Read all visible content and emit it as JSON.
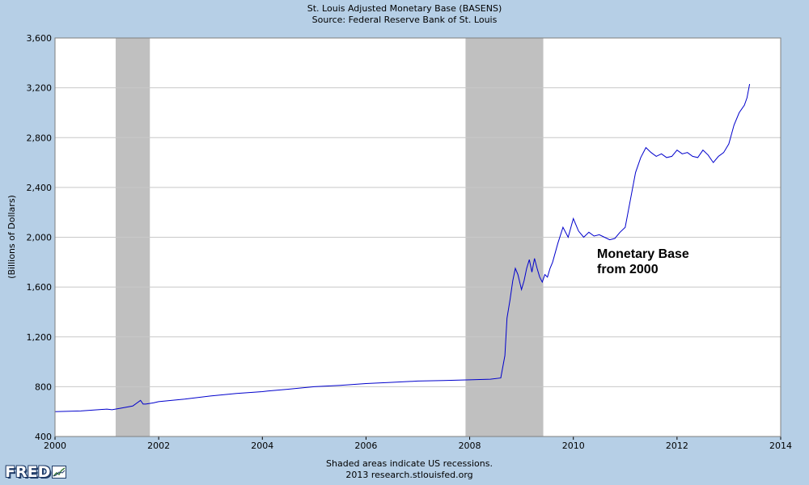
{
  "header": {
    "title": "St. Louis Adjusted Monetary Base (BASENS)",
    "subtitle": "Source: Federal Reserve Bank of St. Louis"
  },
  "footer": {
    "note": "Shaded areas indicate US recessions.",
    "credit": "2013 research.stlouisfed.org"
  },
  "logo": {
    "text": "FRED",
    "icon": "chart-line-icon"
  },
  "colors": {
    "background": "#b6cfe6",
    "plot": "#ffffff",
    "line": "#0000cc",
    "recession": "#c0c0c0",
    "grid": "#c8c8c8"
  },
  "chart_data": {
    "type": "line",
    "title": "St. Louis Adjusted Monetary Base (BASENS)",
    "subtitle": "Source: Federal Reserve Bank of St. Louis",
    "xlabel": "",
    "ylabel": "(Billions of Dollars)",
    "xlim": [
      2000,
      2014
    ],
    "ylim": [
      400,
      3600
    ],
    "x_ticks": [
      2000,
      2002,
      2004,
      2006,
      2008,
      2010,
      2012,
      2014
    ],
    "x_tick_labels": [
      "2000",
      "2002",
      "2004",
      "2006",
      "2008",
      "2010",
      "2012",
      "2014"
    ],
    "y_ticks": [
      400,
      800,
      1200,
      1600,
      2000,
      2400,
      2800,
      3200,
      3600
    ],
    "y_tick_labels": [
      "400",
      "800",
      "1,200",
      "1,600",
      "2,000",
      "2,400",
      "2,800",
      "3,200",
      "3,600"
    ],
    "grid": "horizontal",
    "recessions": [
      [
        2001.17,
        2001.83
      ],
      [
        2007.92,
        2009.42
      ]
    ],
    "annotation": {
      "text": [
        "Monetary Base",
        "from 2000"
      ],
      "x": 2010.45,
      "y": 1700
    },
    "series": [
      {
        "name": "",
        "x": [
          2000.0,
          2000.5,
          2001.0,
          2001.1,
          2001.3,
          2001.5,
          2001.65,
          2001.7,
          2001.75,
          2001.9,
          2002.0,
          2002.5,
          2003.0,
          2003.5,
          2004.0,
          2004.1,
          2004.5,
          2005.0,
          2005.5,
          2006.0,
          2006.5,
          2007.0,
          2007.5,
          2008.0,
          2008.4,
          2008.6,
          2008.68,
          2008.72,
          2008.78,
          2008.83,
          2008.88,
          2008.93,
          2009.0,
          2009.05,
          2009.1,
          2009.15,
          2009.2,
          2009.25,
          2009.3,
          2009.35,
          2009.4,
          2009.45,
          2009.5,
          2009.55,
          2009.6,
          2009.7,
          2009.8,
          2009.9,
          2010.0,
          2010.1,
          2010.2,
          2010.3,
          2010.4,
          2010.5,
          2010.6,
          2010.7,
          2010.8,
          2010.9,
          2011.0,
          2011.1,
          2011.2,
          2011.3,
          2011.4,
          2011.5,
          2011.6,
          2011.7,
          2011.8,
          2011.9,
          2012.0,
          2012.1,
          2012.2,
          2012.3,
          2012.4,
          2012.5,
          2012.6,
          2012.7,
          2012.8,
          2012.9,
          2013.0,
          2013.1,
          2013.2,
          2013.3,
          2013.35,
          2013.4
        ],
        "y": [
          600,
          605,
          620,
          615,
          630,
          645,
          690,
          660,
          660,
          670,
          680,
          700,
          725,
          745,
          760,
          765,
          780,
          800,
          810,
          825,
          835,
          845,
          850,
          855,
          860,
          870,
          1050,
          1350,
          1500,
          1650,
          1750,
          1700,
          1580,
          1650,
          1750,
          1820,
          1720,
          1830,
          1750,
          1680,
          1640,
          1700,
          1680,
          1750,
          1800,
          1950,
          2080,
          2000,
          2150,
          2050,
          2000,
          2040,
          2010,
          2020,
          2000,
          1980,
          1990,
          2040,
          2080,
          2300,
          2520,
          2640,
          2720,
          2680,
          2650,
          2670,
          2640,
          2650,
          2700,
          2670,
          2680,
          2650,
          2640,
          2700,
          2660,
          2600,
          2650,
          2680,
          2750,
          2900,
          3000,
          3060,
          3120,
          3230
        ]
      }
    ]
  }
}
